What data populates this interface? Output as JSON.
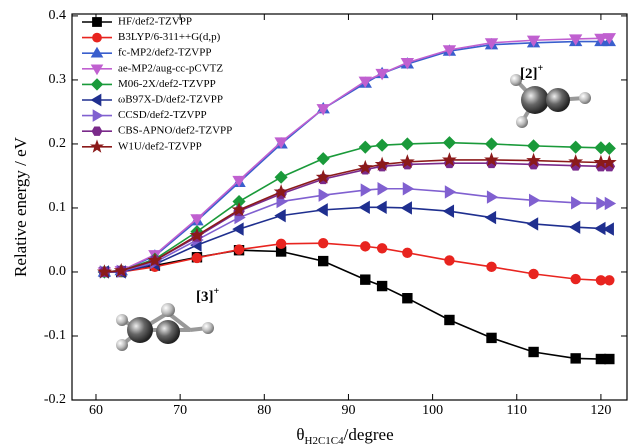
{
  "chart_data": {
    "type": "line",
    "y_label": "Relative energy / eV",
    "x_label_symbol": "θ",
    "x_label_subscript": "H2C1C4",
    "x_label_unit": "/degree",
    "x": [
      61,
      63,
      67,
      72,
      77,
      82,
      87,
      92,
      94,
      97,
      102,
      107,
      112,
      117,
      120,
      121
    ],
    "xlim": [
      57.15,
      123.1
    ],
    "xticks": [
      60,
      70,
      80,
      90,
      100,
      110,
      120
    ],
    "ylim": [
      -0.2,
      0.403
    ],
    "yticks": [
      -0.2,
      -0.1,
      {
        "value": 0,
        "label": "0.0"
      },
      0.1,
      0.2,
      0.3,
      0.4
    ],
    "legend": "top-left",
    "series": [
      {
        "name": "HF/def2-TZVPP",
        "color": "#000000",
        "marker": "square",
        "values": [
          0,
          0,
          0.01,
          0.023,
          0.034,
          0.032,
          0.017,
          -0.012,
          -0.022,
          -0.041,
          -0.075,
          -0.103,
          -0.125,
          -0.135,
          -0.136,
          -0.136
        ]
      },
      {
        "name": "B3LYP/6-311++G(d,p)",
        "color": "#e8241f",
        "marker": "circle",
        "values": [
          0,
          0,
          0.008,
          0.022,
          0.035,
          0.044,
          0.045,
          0.04,
          0.037,
          0.03,
          0.018,
          0.008,
          -0.003,
          -0.011,
          -0.013,
          -0.013
        ]
      },
      {
        "name": "fc-MP2/def2-TZVPP",
        "color": "#3a5fcd",
        "marker": "triangle-up",
        "values": [
          0,
          0.002,
          0.025,
          0.08,
          0.14,
          0.2,
          0.255,
          0.295,
          0.31,
          0.325,
          0.345,
          0.355,
          0.358,
          0.36,
          0.36,
          0.36
        ]
      },
      {
        "name": "ae-MP2/aug-cc-pCVTZ",
        "color": "#c060d0",
        "marker": "triangle-down",
        "values": [
          0,
          0.002,
          0.027,
          0.083,
          0.143,
          0.203,
          0.255,
          0.298,
          0.31,
          0.327,
          0.347,
          0.358,
          0.362,
          0.364,
          0.365,
          0.366
        ]
      },
      {
        "name": "M06-2X/def2-TZVPP",
        "color": "#1a9a3a",
        "marker": "diamond",
        "values": [
          0,
          0.002,
          0.02,
          0.063,
          0.11,
          0.148,
          0.177,
          0.195,
          0.198,
          0.2,
          0.202,
          0.2,
          0.197,
          0.195,
          0.194,
          0.193
        ]
      },
      {
        "name": "ωB97X-D/def2-TZVPP",
        "color": "#1f2f8f",
        "marker": "triangle-left",
        "values": [
          0,
          0,
          0.012,
          0.042,
          0.067,
          0.088,
          0.097,
          0.101,
          0.101,
          0.1,
          0.095,
          0.085,
          0.075,
          0.07,
          0.068,
          0.067
        ]
      },
      {
        "name": "CCSD/def2-TZVPP",
        "color": "#8060d0",
        "marker": "triangle-right",
        "values": [
          0,
          0.001,
          0.015,
          0.05,
          0.085,
          0.11,
          0.12,
          0.128,
          0.13,
          0.13,
          0.125,
          0.117,
          0.112,
          0.108,
          0.107,
          0.107
        ]
      },
      {
        "name": "CBS-APNO/def2-TZVPP",
        "color": "#7a2a8a",
        "marker": "hexagon",
        "values": [
          0,
          0.002,
          0.018,
          0.055,
          0.095,
          0.122,
          0.145,
          0.16,
          0.165,
          0.168,
          0.17,
          0.17,
          0.168,
          0.166,
          0.165,
          0.165
        ]
      },
      {
        "name": "W1U/def2-TZVPP",
        "color": "#8b1a1a",
        "marker": "star",
        "values": [
          0,
          0.002,
          0.018,
          0.057,
          0.097,
          0.125,
          0.148,
          0.163,
          0.168,
          0.172,
          0.175,
          0.175,
          0.174,
          0.172,
          0.171,
          0.171
        ]
      }
    ],
    "annotations": [
      {
        "text": "[2]",
        "sup": "+"
      },
      {
        "text": "[3]",
        "sup": "+"
      }
    ]
  }
}
